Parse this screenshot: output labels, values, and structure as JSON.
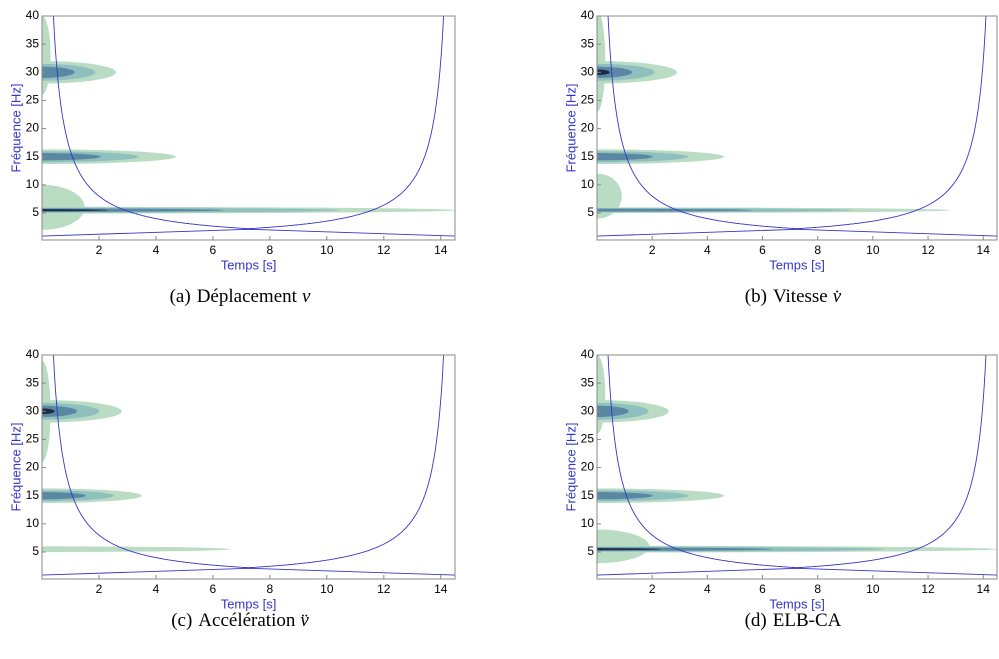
{
  "chart_data": [
    {
      "type": "contour",
      "caption_label": "(a)",
      "caption": "Déplacement",
      "caption_symbol": "v",
      "x_label": "Temps [s]",
      "y_label": "Fréquence [Hz]",
      "xlim": [
        0,
        14.5
      ],
      "ylim": [
        0.2,
        40
      ],
      "xticks": [
        2,
        4,
        6,
        8,
        10,
        12,
        14
      ],
      "yticks": [
        5,
        10,
        15,
        20,
        25,
        30,
        35,
        40
      ],
      "coi_k": 16,
      "coi_floor": [
        0.9,
        2.1,
        0.9
      ],
      "coi_color": "#3535c8",
      "level_colors": [
        "#b9dcc3",
        "#8fbfbf",
        "#5a87a3",
        "#1d2c45"
      ],
      "ridges": [
        {
          "freq": 33,
          "t_start": 0,
          "t_end": 0.3,
          "half_width": 7,
          "level": 1
        },
        {
          "freq": 6,
          "t_start": 0,
          "t_end": 1.5,
          "half_width": 4,
          "level": 1
        },
        {
          "freq": 30,
          "t_start": 0,
          "t_end": 2.6,
          "half_width": 2,
          "level": 3
        },
        {
          "freq": 15,
          "t_start": 0,
          "t_end": 4.7,
          "half_width": 1.3,
          "level": 3
        },
        {
          "freq": 5.5,
          "t_start": 0,
          "t_end": 14.5,
          "half_width": 0.6,
          "level": 4
        }
      ]
    },
    {
      "type": "contour",
      "caption_label": "(b)",
      "caption": "Vitesse",
      "caption_symbol": "v̇",
      "x_label": "Temps [s]",
      "y_label": "Fréquence [Hz]",
      "xlim": [
        0,
        14.5
      ],
      "ylim": [
        0.2,
        40
      ],
      "xticks": [
        2,
        4,
        6,
        8,
        10,
        12,
        14
      ],
      "yticks": [
        5,
        10,
        15,
        20,
        25,
        30,
        35,
        40
      ],
      "coi_k": 16,
      "coi_floor": [
        0.9,
        2.1,
        0.9
      ],
      "coi_color": "#3535c8",
      "level_colors": [
        "#b9dcc3",
        "#8fbfbf",
        "#5a87a3",
        "#1d2c45"
      ],
      "ridges": [
        {
          "freq": 32,
          "t_start": 0,
          "t_end": 0.3,
          "half_width": 9,
          "level": 1
        },
        {
          "freq": 8,
          "t_start": 0,
          "t_end": 0.9,
          "half_width": 4,
          "level": 1
        },
        {
          "freq": 30,
          "t_start": 0,
          "t_end": 2.9,
          "half_width": 2,
          "level": 4
        },
        {
          "freq": 15,
          "t_start": 0,
          "t_end": 4.6,
          "half_width": 1.3,
          "level": 3
        },
        {
          "freq": 5.5,
          "t_start": 0,
          "t_end": 12.8,
          "half_width": 0.5,
          "level": 3
        }
      ]
    },
    {
      "type": "contour",
      "caption_label": "(c)",
      "caption": "Accélération",
      "caption_symbol": "v̈",
      "x_label": "Temps [s]",
      "y_label": "Fréquence [Hz]",
      "xlim": [
        0,
        14.5
      ],
      "ylim": [
        0.2,
        40
      ],
      "xticks": [
        2,
        4,
        6,
        8,
        10,
        12,
        14
      ],
      "yticks": [
        5,
        10,
        15,
        20,
        25,
        30,
        35,
        40
      ],
      "coi_k": 16,
      "coi_floor": [
        0.9,
        2.1,
        0.9
      ],
      "coi_color": "#3535c8",
      "level_colors": [
        "#b9dcc3",
        "#8fbfbf",
        "#5a87a3",
        "#1d2c45"
      ],
      "ridges": [
        {
          "freq": 30,
          "t_start": 0,
          "t_end": 0.3,
          "half_width": 9,
          "level": 1
        },
        {
          "freq": 30,
          "t_start": 0,
          "t_end": 2.8,
          "half_width": 2,
          "level": 4
        },
        {
          "freq": 15,
          "t_start": 0,
          "t_end": 3.5,
          "half_width": 1.3,
          "level": 3
        },
        {
          "freq": 5.5,
          "t_start": 0,
          "t_end": 6.6,
          "half_width": 0.5,
          "level": 1
        }
      ]
    },
    {
      "type": "contour",
      "caption_label": "(d)",
      "caption": "ELB-CA",
      "caption_symbol": "",
      "x_label": "Temps [s]",
      "y_label": "Fréquence [Hz]",
      "xlim": [
        0,
        14.5
      ],
      "ylim": [
        0.2,
        40
      ],
      "xticks": [
        2,
        4,
        6,
        8,
        10,
        12,
        14
      ],
      "yticks": [
        5,
        10,
        15,
        20,
        25,
        30,
        35,
        40
      ],
      "coi_k": 16,
      "coi_floor": [
        0.9,
        2.1,
        0.9
      ],
      "coi_color": "#3535c8",
      "level_colors": [
        "#b9dcc3",
        "#8fbfbf",
        "#5a87a3",
        "#1d2c45"
      ],
      "ridges": [
        {
          "freq": 33,
          "t_start": 0,
          "t_end": 0.3,
          "half_width": 7,
          "level": 1
        },
        {
          "freq": 6,
          "t_start": 0,
          "t_end": 1.9,
          "half_width": 3,
          "level": 1
        },
        {
          "freq": 30,
          "t_start": 0,
          "t_end": 2.6,
          "half_width": 2,
          "level": 3
        },
        {
          "freq": 15,
          "t_start": 0,
          "t_end": 4.6,
          "half_width": 1.3,
          "level": 3
        },
        {
          "freq": 5.5,
          "t_start": 0,
          "t_end": 14.5,
          "half_width": 0.6,
          "level": 4
        }
      ]
    }
  ]
}
